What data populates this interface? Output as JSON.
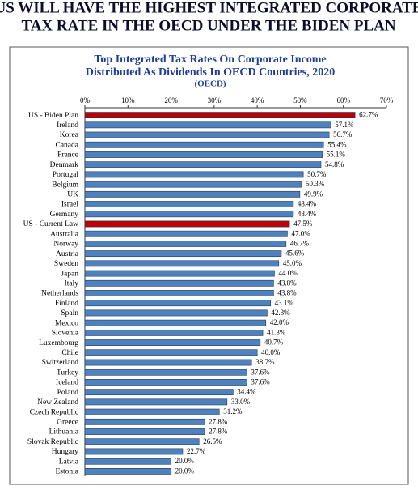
{
  "headline": [
    "US WILL HAVE THE HIGHEST INTEGRATED CORPORATE",
    "TAX RATE IN THE OECD UNDER THE BIDEN PLAN"
  ],
  "chart_data": {
    "type": "hbar",
    "title": [
      "Top Integrated Tax Rates On Corporate Income",
      "Distributed As Dividends In OECD Countries, 2020"
    ],
    "subtitle": "(OECD)",
    "categories": [
      "US - Biden Plan",
      "Ireland",
      "Korea",
      "Canada",
      "France",
      "Denmark",
      "Portugal",
      "Belgium",
      "UK",
      "Israel",
      "Germany",
      "US - Current Law",
      "Australia",
      "Norway",
      "Austria",
      "Sweden",
      "Japan",
      "Italy",
      "Netherlands",
      "Finland",
      "Spain",
      "Mexico",
      "Slovenia",
      "Luxembourg",
      "Chile",
      "Switzerland",
      "Turkey",
      "Iceland",
      "Poland",
      "New Zealand",
      "Czech Republic",
      "Greece",
      "Lithuania",
      "Slovak Republic",
      "Hungary",
      "Latvia",
      "Estonia"
    ],
    "values": [
      62.7,
      57.1,
      56.7,
      55.4,
      55.1,
      54.8,
      50.7,
      50.3,
      49.9,
      48.4,
      48.4,
      47.5,
      47.0,
      46.7,
      45.6,
      45.0,
      44.0,
      43.8,
      43.8,
      43.1,
      42.3,
      42.0,
      41.3,
      40.7,
      40.0,
      38.7,
      37.6,
      37.6,
      34.4,
      33.0,
      31.2,
      27.8,
      27.8,
      26.5,
      22.7,
      20.0,
      20.0
    ],
    "value_labels": [
      "62.7%",
      "57.1%",
      "56.7%",
      "55.4%",
      "55.1%",
      "54.8%",
      "50.7%",
      "50.3%",
      "49.9%",
      "48.4%",
      "48.4%",
      "47.5%",
      "47.0%",
      "46.7%",
      "45.6%",
      "45.0%",
      "44.0%",
      "43.8%",
      "43.8%",
      "43.1%",
      "42.3%",
      "42.0%",
      "41.3%",
      "40.7%",
      "40.0%",
      "38.7%",
      "37.6%",
      "37.6%",
      "34.4%",
      "33.0%",
      "31.2%",
      "27.8%",
      "27.8%",
      "26.5%",
      "22.7%",
      "20.0%",
      "20.0%"
    ],
    "colors": [
      "#c00000",
      "#4f81bd",
      "#4f81bd",
      "#4f81bd",
      "#4f81bd",
      "#4f81bd",
      "#4f81bd",
      "#4f81bd",
      "#4f81bd",
      "#4f81bd",
      "#4f81bd",
      "#c00000",
      "#4f81bd",
      "#4f81bd",
      "#4f81bd",
      "#4f81bd",
      "#4f81bd",
      "#4f81bd",
      "#4f81bd",
      "#4f81bd",
      "#4f81bd",
      "#4f81bd",
      "#4f81bd",
      "#4f81bd",
      "#4f81bd",
      "#4f81bd",
      "#4f81bd",
      "#4f81bd",
      "#4f81bd",
      "#4f81bd",
      "#4f81bd",
      "#4f81bd",
      "#4f81bd",
      "#4f81bd",
      "#4f81bd",
      "#4f81bd",
      "#4f81bd"
    ],
    "xlim": [
      0,
      70
    ],
    "xticks": [
      {
        "value": 0,
        "label": "0%"
      },
      {
        "value": 10,
        "label": "10%"
      },
      {
        "value": 20,
        "label": "20%"
      },
      {
        "value": 30,
        "label": "30%"
      },
      {
        "value": 40,
        "label": "40%"
      },
      {
        "value": 50,
        "label": "50%"
      },
      {
        "value": 60,
        "label": "60%"
      },
      {
        "value": 70,
        "label": "70%"
      }
    ]
  }
}
